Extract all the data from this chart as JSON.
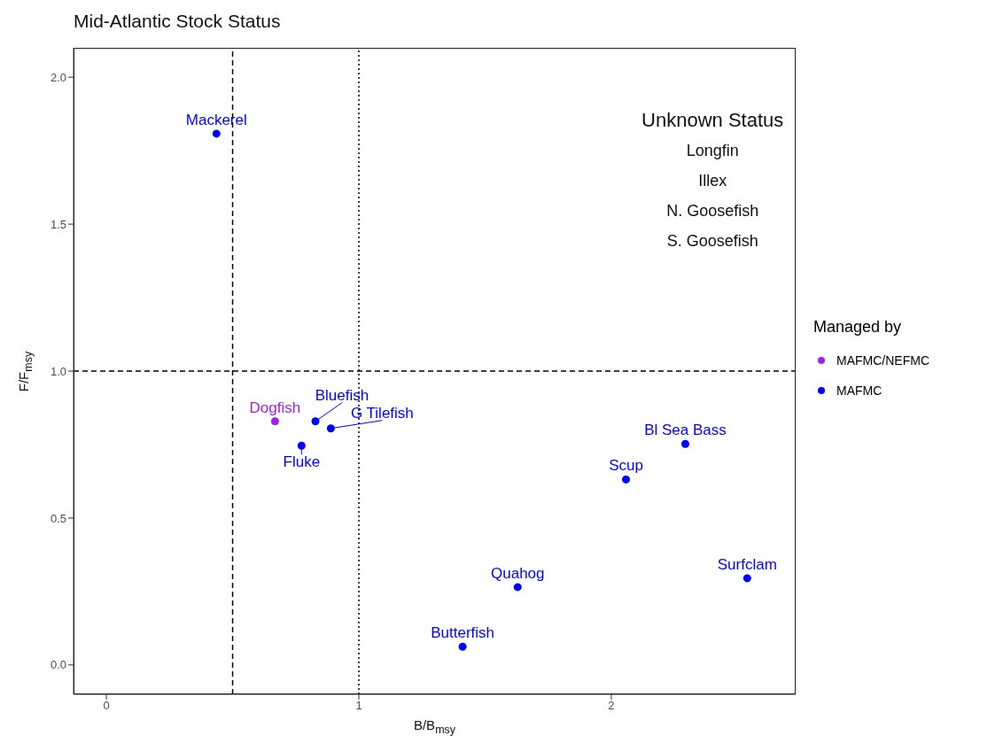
{
  "chart_data": {
    "type": "scatter",
    "title": "Mid-Atlantic Stock Status",
    "xlabel": "B/B$_{msy}$",
    "ylabel": "F/F$_{msy}$",
    "legend_title": "Managed by",
    "legend": "right",
    "grid": false,
    "marker": "circle",
    "xlim": [
      -0.13,
      2.73
    ],
    "ylim": [
      -0.1,
      2.1
    ],
    "xticks": [
      {
        "value": 0,
        "label": "0"
      },
      {
        "value": 1,
        "label": "1"
      },
      {
        "value": 2,
        "label": "2"
      }
    ],
    "yticks": [
      {
        "value": 0,
        "label": "0.0"
      },
      0.5,
      {
        "value": 1,
        "label": "1.0"
      },
      1.5,
      {
        "value": 2,
        "label": "2.0"
      }
    ],
    "series": [
      {
        "name": "MAFMC/NEFMC",
        "color": "#a020f0",
        "x": [
          0.668
        ],
        "values": [
          0.829
        ],
        "value_labels": [
          "Dogfish"
        ]
      },
      {
        "name": "MAFMC",
        "color": "#0000ff",
        "x": [
          0.436,
          0.828,
          0.889,
          0.773,
          2.293,
          2.058,
          2.538,
          1.629,
          1.411
        ],
        "values": [
          1.808,
          0.829,
          0.805,
          0.746,
          0.752,
          0.631,
          0.295,
          0.265,
          0.062
        ],
        "value_labels": [
          "Mackerel",
          "Bluefish",
          "G Tilefish",
          "Fluke",
          "Bl Sea Bass",
          "Scup",
          "Surfclam",
          "Quahog",
          "Butterfish"
        ]
      }
    ],
    "ref_lines": [
      {
        "axis": "x",
        "value": 0.5,
        "line_style": "dashed"
      },
      {
        "axis": "x",
        "value": 1,
        "line_style": "dotted"
      },
      {
        "axis": "y",
        "value": 1,
        "line_style": "dashed"
      }
    ],
    "annotations": [
      "Unknown Status",
      "Longfin",
      "Illex",
      "N. Goosefish",
      "S. Goosefish"
    ]
  }
}
